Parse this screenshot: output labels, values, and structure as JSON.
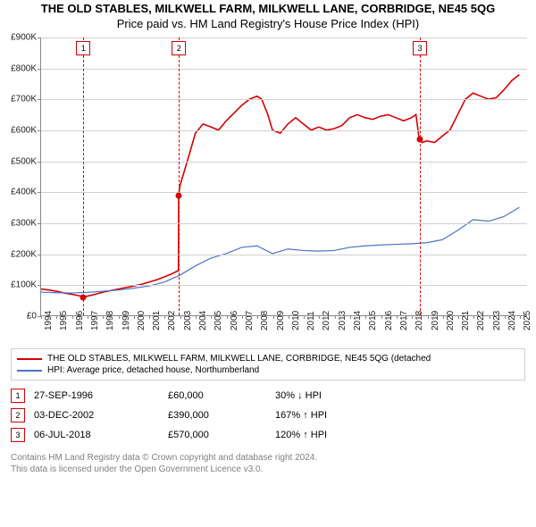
{
  "title_line1": "THE OLD STABLES, MILKWELL FARM, MILKWELL LANE, CORBRIDGE, NE45 5QG",
  "title_line2": "Price paid vs. HM Land Registry's House Price Index (HPI)",
  "chart": {
    "type": "line",
    "background_color": "#ffffff",
    "grid_color": "#d0d0d0",
    "axis_color": "#888888",
    "x_years": [
      1994,
      1995,
      1996,
      1997,
      1998,
      1999,
      2000,
      2001,
      2002,
      2003,
      2004,
      2005,
      2006,
      2007,
      2008,
      2009,
      2010,
      2011,
      2012,
      2013,
      2014,
      2015,
      2016,
      2017,
      2018,
      2019,
      2020,
      2021,
      2022,
      2023,
      2024,
      2025
    ],
    "xlim": [
      1994,
      2025.5
    ],
    "ylim": [
      0,
      900000
    ],
    "ytick_step": 100000,
    "ylabels": [
      "£0",
      "£100K",
      "£200K",
      "£300K",
      "£400K",
      "£500K",
      "£600K",
      "£700K",
      "£800K",
      "£900K"
    ],
    "series": [
      {
        "name": "property",
        "color": "#d40000",
        "width": 1.6,
        "points": [
          [
            1994.0,
            85000
          ],
          [
            1994.5,
            82000
          ],
          [
            1995.0,
            78000
          ],
          [
            1995.5,
            72000
          ],
          [
            1996.0,
            68000
          ],
          [
            1996.5,
            63000
          ],
          [
            1996.74,
            60000
          ],
          [
            1997.0,
            62000
          ],
          [
            1997.5,
            68000
          ],
          [
            1998.0,
            75000
          ],
          [
            1998.5,
            80000
          ],
          [
            1999.0,
            85000
          ],
          [
            1999.5,
            90000
          ],
          [
            2000.0,
            95000
          ],
          [
            2000.5,
            100000
          ],
          [
            2001.0,
            108000
          ],
          [
            2001.5,
            115000
          ],
          [
            2002.0,
            125000
          ],
          [
            2002.5,
            135000
          ],
          [
            2002.9,
            145000
          ],
          [
            2002.92,
            390000
          ],
          [
            2003.0,
            420000
          ],
          [
            2003.3,
            470000
          ],
          [
            2003.6,
            520000
          ],
          [
            2004.0,
            590000
          ],
          [
            2004.5,
            620000
          ],
          [
            2005.0,
            610000
          ],
          [
            2005.5,
            600000
          ],
          [
            2006.0,
            630000
          ],
          [
            2006.5,
            655000
          ],
          [
            2007.0,
            680000
          ],
          [
            2007.5,
            700000
          ],
          [
            2008.0,
            710000
          ],
          [
            2008.3,
            700000
          ],
          [
            2008.7,
            650000
          ],
          [
            2009.0,
            600000
          ],
          [
            2009.5,
            590000
          ],
          [
            2010.0,
            620000
          ],
          [
            2010.5,
            640000
          ],
          [
            2011.0,
            620000
          ],
          [
            2011.5,
            600000
          ],
          [
            2012.0,
            610000
          ],
          [
            2012.5,
            600000
          ],
          [
            2013.0,
            605000
          ],
          [
            2013.5,
            615000
          ],
          [
            2014.0,
            640000
          ],
          [
            2014.5,
            650000
          ],
          [
            2015.0,
            640000
          ],
          [
            2015.5,
            635000
          ],
          [
            2016.0,
            645000
          ],
          [
            2016.5,
            650000
          ],
          [
            2017.0,
            640000
          ],
          [
            2017.5,
            630000
          ],
          [
            2018.0,
            640000
          ],
          [
            2018.3,
            650000
          ],
          [
            2018.51,
            570000
          ],
          [
            2018.7,
            560000
          ],
          [
            2019.0,
            565000
          ],
          [
            2019.5,
            560000
          ],
          [
            2020.0,
            580000
          ],
          [
            2020.5,
            600000
          ],
          [
            2021.0,
            650000
          ],
          [
            2021.5,
            700000
          ],
          [
            2022.0,
            720000
          ],
          [
            2022.5,
            710000
          ],
          [
            2023.0,
            700000
          ],
          [
            2023.5,
            705000
          ],
          [
            2024.0,
            730000
          ],
          [
            2024.5,
            760000
          ],
          [
            2025.0,
            780000
          ]
        ]
      },
      {
        "name": "hpi",
        "color": "#4a74c9",
        "width": 1.2,
        "points": [
          [
            1994.0,
            75000
          ],
          [
            1995.0,
            73000
          ],
          [
            1996.0,
            72000
          ],
          [
            1997.0,
            74000
          ],
          [
            1998.0,
            78000
          ],
          [
            1999.0,
            82000
          ],
          [
            2000.0,
            88000
          ],
          [
            2001.0,
            95000
          ],
          [
            2002.0,
            108000
          ],
          [
            2003.0,
            130000
          ],
          [
            2004.0,
            160000
          ],
          [
            2005.0,
            185000
          ],
          [
            2006.0,
            200000
          ],
          [
            2007.0,
            220000
          ],
          [
            2008.0,
            225000
          ],
          [
            2009.0,
            200000
          ],
          [
            2010.0,
            215000
          ],
          [
            2011.0,
            210000
          ],
          [
            2012.0,
            208000
          ],
          [
            2013.0,
            210000
          ],
          [
            2014.0,
            220000
          ],
          [
            2015.0,
            225000
          ],
          [
            2016.0,
            228000
          ],
          [
            2017.0,
            230000
          ],
          [
            2018.0,
            232000
          ],
          [
            2019.0,
            235000
          ],
          [
            2020.0,
            245000
          ],
          [
            2021.0,
            275000
          ],
          [
            2022.0,
            310000
          ],
          [
            2023.0,
            305000
          ],
          [
            2024.0,
            320000
          ],
          [
            2025.0,
            350000
          ]
        ]
      }
    ],
    "markers": [
      {
        "n": "1",
        "x": 1996.74,
        "y": 60000,
        "dot_color": "#d40000"
      },
      {
        "n": "2",
        "x": 2002.92,
        "y": 390000,
        "dot_color": "#d40000"
      },
      {
        "n": "3",
        "x": 2018.51,
        "y": 570000,
        "dot_color": "#d40000"
      }
    ],
    "marker_line_color": "#d40000"
  },
  "legend": {
    "items": [
      {
        "color": "#d40000",
        "label": "THE OLD STABLES, MILKWELL FARM, MILKWELL LANE, CORBRIDGE, NE45 5QG (detached"
      },
      {
        "color": "#4a74c9",
        "label": "HPI: Average price, detached house, Northumberland"
      }
    ]
  },
  "events": [
    {
      "n": "1",
      "date": "27-SEP-1996",
      "price": "£60,000",
      "pct": "30% ↓ HPI"
    },
    {
      "n": "2",
      "date": "03-DEC-2002",
      "price": "£390,000",
      "pct": "167% ↑ HPI"
    },
    {
      "n": "3",
      "date": "06-JUL-2018",
      "price": "£570,000",
      "pct": "120% ↑ HPI"
    }
  ],
  "footer_line1": "Contains HM Land Registry data © Crown copyright and database right 2024.",
  "footer_line2": "This data is licensed under the Open Government Licence v3.0."
}
